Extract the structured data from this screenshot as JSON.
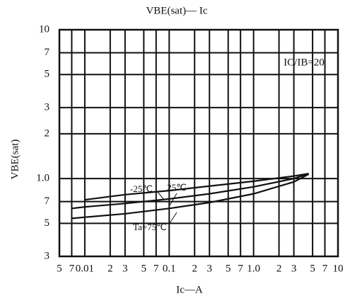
{
  "chart_data": {
    "type": "line",
    "title": "VBE(sat)— Ic",
    "x_label": "Ic—A",
    "y_label": "VBE(sat)",
    "annotation": "IC/IB=20",
    "log_x": true,
    "log_y": true,
    "grid": true,
    "xlim": [
      0.005,
      10
    ],
    "ylim": [
      0.3,
      10
    ],
    "xticks": [
      {
        "value": 0.005,
        "label": "5"
      },
      {
        "value": 0.007,
        "label": "7"
      },
      0.01,
      {
        "value": 0.02,
        "label": "2"
      },
      {
        "value": 0.03,
        "label": "3"
      },
      {
        "value": 0.05,
        "label": "5"
      },
      {
        "value": 0.07,
        "label": "7"
      },
      0.1,
      {
        "value": 0.2,
        "label": "2"
      },
      {
        "value": 0.3,
        "label": "3"
      },
      {
        "value": 0.5,
        "label": "5"
      },
      {
        "value": 0.7,
        "label": "7"
      },
      {
        "value": 1,
        "label": "1.0"
      },
      2,
      3,
      5,
      7,
      10
    ],
    "yticks": [
      10,
      7,
      5,
      3,
      2,
      {
        "value": 1,
        "label": "1.0"
      },
      {
        "value": 0.7,
        "label": "7"
      },
      {
        "value": 0.5,
        "label": "5"
      },
      {
        "value": 0.3,
        "label": "3"
      }
    ],
    "x": [
      0.007,
      0.01,
      0.03,
      0.1,
      0.3,
      1,
      3,
      4.5
    ],
    "series": [
      {
        "name": "-25℃",
        "color": "#111111",
        "values": [
          null,
          0.72,
          0.78,
          0.83,
          0.89,
          0.96,
          1.04,
          1.08
        ]
      },
      {
        "name": "25℃",
        "color": "#111111",
        "values": [
          0.63,
          0.645,
          0.68,
          0.73,
          0.79,
          0.88,
          1.0,
          1.08
        ]
      },
      {
        "name": "Ta=75℃",
        "color": "#111111",
        "values": [
          0.54,
          0.55,
          0.58,
          0.63,
          0.69,
          0.79,
          0.95,
          1.07
        ]
      }
    ]
  }
}
